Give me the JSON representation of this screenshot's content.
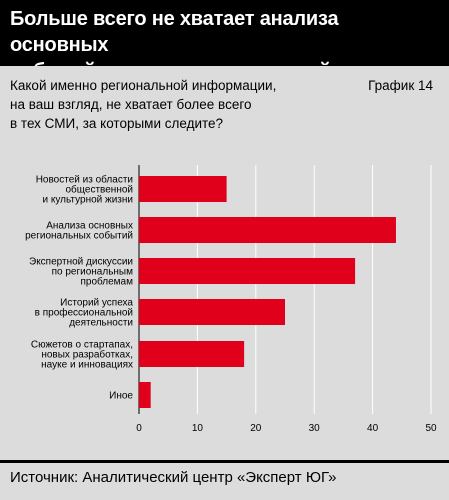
{
  "header": {
    "title_lines": [
      "Больше всего не хватает анализа основных",
      "событий в регионе и экспертной дискуссии"
    ]
  },
  "question_lines": [
    "Какой именно региональной информации,",
    "на ваш взгляд, не хватает более всего",
    "в тех СМИ, за которыми следите?"
  ],
  "graph_label": "График  14",
  "footer": {
    "source": "Источник: Аналитический центр «Эксперт ЮГ»"
  },
  "colors": {
    "bar": "#e0001b",
    "panel": "#dcdcdc",
    "grid": "#ffffff"
  },
  "chart_data": {
    "type": "bar",
    "orientation": "horizontal",
    "categories": [
      [
        "Новостей из области",
        "общественной",
        "и культурной жизни"
      ],
      [
        "Анализа основных",
        "региональных событий"
      ],
      [
        "Экспертной дискуссии",
        "по региональным",
        "проблемам"
      ],
      [
        "Историй успеха",
        "в профессиональной",
        "деятельности"
      ],
      [
        "Сюжетов о стартапах,",
        "новых разработках,",
        "науке и инновациях"
      ],
      [
        "Иное"
      ]
    ],
    "values": [
      15,
      44,
      37,
      25,
      18,
      2
    ],
    "xlim": [
      0,
      50
    ],
    "xticks": [
      0,
      10,
      20,
      30,
      40,
      50
    ],
    "grid": true
  }
}
